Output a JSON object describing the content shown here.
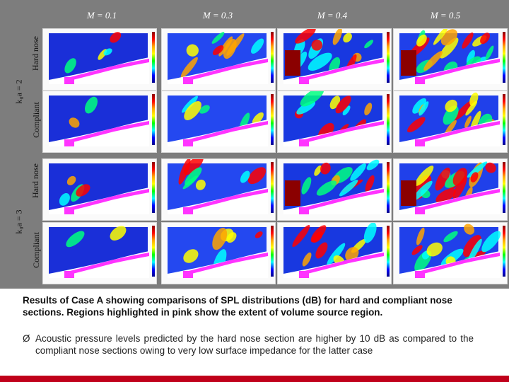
{
  "figure": {
    "column_headers": [
      "M = 0.1",
      "M = 0.3",
      "M = 0.4",
      "M = 0.5"
    ],
    "row_groups": [
      {
        "group_label": "k₀a = 2",
        "rows": [
          "Hard nose",
          "Compliant"
        ]
      },
      {
        "group_label": "k₀a = 3",
        "rows": [
          "Hard nose",
          "Compliant"
        ]
      }
    ],
    "colorbar": {
      "colors": [
        "#8b0000",
        "#ff0000",
        "#ffa500",
        "#ffff00",
        "#00ff00",
        "#00ffff",
        "#0000ff",
        "#00008b"
      ]
    },
    "volume_source_color": "#ff33ff"
  },
  "caption": {
    "text": "Results of Case A showing comparisons of SPL distributions (dB) for hard and compliant nose sections. Regions highlighted in pink show the extent of volume source region."
  },
  "bullet": {
    "symbol": "Ø",
    "text": "Acoustic pressure levels predicted by the hard nose section are higher by 10 dB as compared to the compliant nose sections owing to very low surface impedance for the latter case"
  },
  "footer": {
    "color": "#c0001a"
  }
}
